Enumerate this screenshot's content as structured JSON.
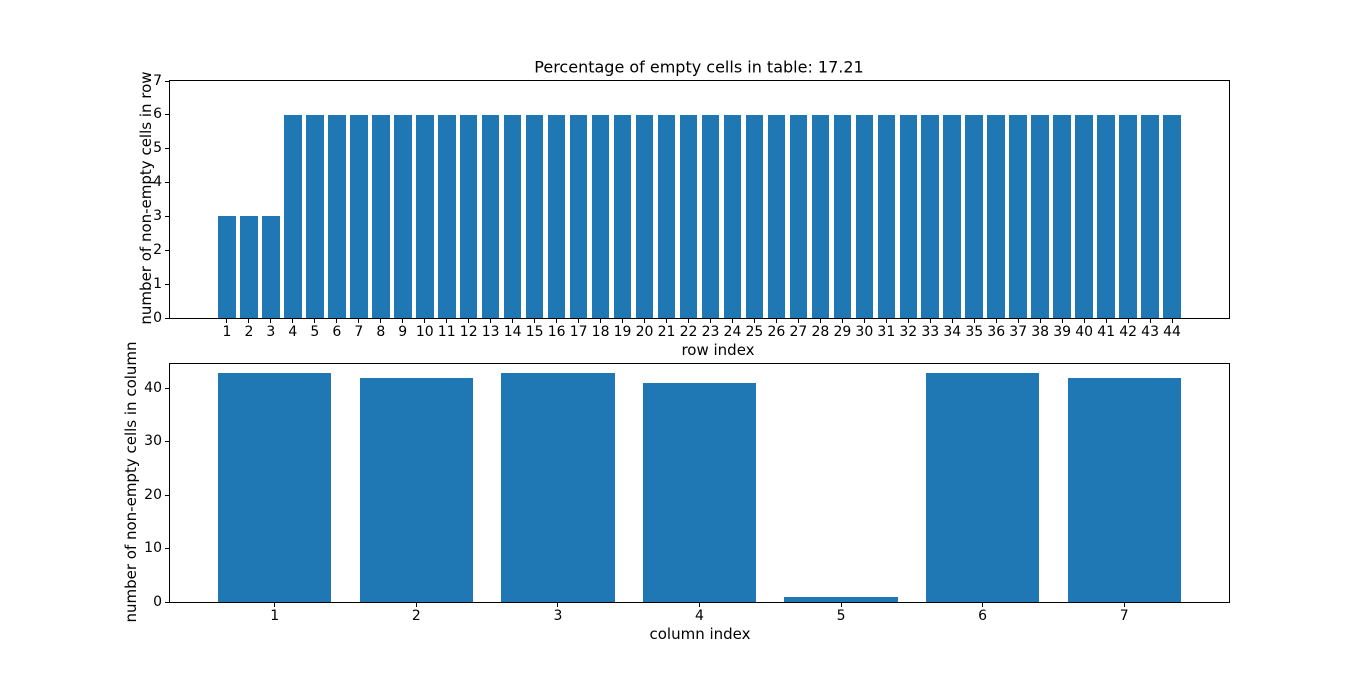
{
  "figure": {
    "background": "#ffffff",
    "spine_color": "#000000",
    "text_color": "#000000"
  },
  "stats": {
    "percent_empty_cells": 17.21
  },
  "chart_data": [
    {
      "type": "bar",
      "title": "Percentage of empty cells in table: 17.21",
      "xlabel": "row index",
      "ylabel": "number of non-empty cells in row",
      "bar_color": "#1f77b4",
      "bar_width": 0.8,
      "grid": false,
      "legend": null,
      "xlim": [
        -1.59,
        46.59
      ],
      "ylim": [
        0,
        7
      ],
      "yticks": [
        0,
        1,
        2,
        3,
        4,
        5,
        6,
        7
      ],
      "categories": [
        1,
        2,
        3,
        4,
        5,
        6,
        7,
        8,
        9,
        10,
        11,
        12,
        13,
        14,
        15,
        16,
        17,
        18,
        19,
        20,
        21,
        22,
        23,
        24,
        25,
        26,
        27,
        28,
        29,
        30,
        31,
        32,
        33,
        34,
        35,
        36,
        37,
        38,
        39,
        40,
        41,
        42,
        43,
        44
      ],
      "values": [
        3,
        3,
        3,
        6,
        6,
        6,
        6,
        6,
        6,
        6,
        6,
        6,
        6,
        6,
        6,
        6,
        6,
        6,
        6,
        6,
        6,
        6,
        6,
        6,
        6,
        6,
        6,
        6,
        6,
        6,
        6,
        6,
        6,
        6,
        6,
        6,
        6,
        6,
        6,
        6,
        6,
        6,
        6,
        6
      ]
    },
    {
      "type": "bar",
      "title": "",
      "xlabel": "column index",
      "ylabel": "number of non-empty cells in column",
      "bar_color": "#1f77b4",
      "bar_width": 0.8,
      "grid": false,
      "legend": null,
      "xlim": [
        0.26,
        7.74
      ],
      "ylim": [
        0,
        44.6
      ],
      "yticks": [
        0,
        10,
        20,
        30,
        40
      ],
      "categories": [
        1,
        2,
        3,
        4,
        5,
        6,
        7
      ],
      "values": [
        43,
        42,
        43,
        41,
        1,
        43,
        42
      ]
    }
  ]
}
